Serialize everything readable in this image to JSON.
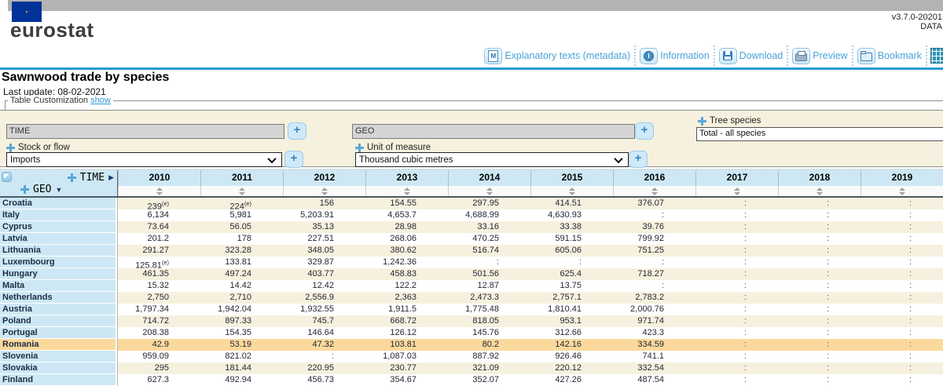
{
  "header": {
    "brand": "eurostat",
    "flag_icon": "eu-flag-icon",
    "version_line1": "v3.7.0-20201",
    "version_line2": "DATA",
    "toolbar": [
      {
        "name": "explanatory-texts-button",
        "icon": "metadata-icon",
        "label": "Explanatory texts (metadata)"
      },
      {
        "name": "information-button",
        "icon": "information-icon",
        "label": "Information"
      },
      {
        "name": "download-button",
        "icon": "download-icon",
        "label": "Download"
      },
      {
        "name": "preview-button",
        "icon": "preview-icon",
        "label": "Preview"
      },
      {
        "name": "bookmark-button",
        "icon": "bookmark-icon",
        "label": "Bookmark"
      }
    ],
    "trailing_icon": "table-grid-icon"
  },
  "page": {
    "title": "Sawnwood trade by species",
    "last_update": "Last update: 08-02-2021",
    "customization_label": "Table Customization",
    "customization_link": "show"
  },
  "filters": {
    "time": {
      "value": "TIME",
      "add_button": "+"
    },
    "geo": {
      "value": "GEO",
      "add_button": "+"
    },
    "tree_species": {
      "label": "Tree species",
      "value": "Total - all species",
      "icon": "move-icon"
    },
    "stock_or_flow": {
      "label": "Stock or flow",
      "value": "Imports",
      "add_button": "+",
      "icon": "move-icon"
    },
    "unit_of_measure": {
      "label": "Unit of measure",
      "value": "Thousand cubic metres",
      "add_button": "+",
      "icon": "move-icon"
    }
  },
  "table": {
    "time_axis_label": "TIME",
    "geo_axis_label": "GEO",
    "years": [
      "2010",
      "2011",
      "2012",
      "2013",
      "2014",
      "2015",
      "2016",
      "2017",
      "2018",
      "2019"
    ],
    "rows": [
      {
        "country": "Croatia",
        "highlight": false,
        "values": [
          "239 (e)",
          "224 (e)",
          "156",
          "154.55",
          "297.95",
          "414.51",
          "376.07",
          ":",
          ":",
          ":"
        ]
      },
      {
        "country": "Italy",
        "highlight": false,
        "values": [
          "6,134",
          "5,981",
          "5,203.91",
          "4,653.7",
          "4,688.99",
          "4,630.93",
          ":",
          ":",
          ":",
          ":"
        ]
      },
      {
        "country": "Cyprus",
        "highlight": false,
        "values": [
          "73.64",
          "56.05",
          "35.13",
          "28.98",
          "33.16",
          "33.38",
          "39.76",
          ":",
          ":",
          ":"
        ]
      },
      {
        "country": "Latvia",
        "highlight": false,
        "values": [
          "201.2",
          "178",
          "227.51",
          "268.06",
          "470.25",
          "591.15",
          "799.92",
          ":",
          ":",
          ":"
        ]
      },
      {
        "country": "Lithuania",
        "highlight": false,
        "values": [
          "291.27",
          "323.28",
          "348.05",
          "380.62",
          "516.74",
          "605.06",
          "751.25",
          ":",
          ":",
          ":"
        ]
      },
      {
        "country": "Luxembourg",
        "highlight": false,
        "values": [
          "125.81 (e)",
          "133.81",
          "329.87",
          "1,242.36",
          ":",
          ":",
          ":",
          ":",
          ":",
          ":"
        ]
      },
      {
        "country": "Hungary",
        "highlight": false,
        "values": [
          "461.35",
          "497.24",
          "403.77",
          "458.83",
          "501.56",
          "625.4",
          "718.27",
          ":",
          ":",
          ":"
        ]
      },
      {
        "country": "Malta",
        "highlight": false,
        "values": [
          "15.32",
          "14.42",
          "12.42",
          "122.2",
          "12.87",
          "13.75",
          ":",
          ":",
          ":",
          ":"
        ]
      },
      {
        "country": "Netherlands",
        "highlight": false,
        "values": [
          "2,750",
          "2,710",
          "2,556.9",
          "2,363",
          "2,473.3",
          "2,757.1",
          "2,783.2",
          ":",
          ":",
          ":"
        ]
      },
      {
        "country": "Austria",
        "highlight": false,
        "values": [
          "1,797.34",
          "1,942.04",
          "1,932.55",
          "1,911.5",
          "1,775.48",
          "1,810.41",
          "2,000.76",
          ":",
          ":",
          ":"
        ]
      },
      {
        "country": "Poland",
        "highlight": false,
        "values": [
          "714.72",
          "897.33",
          "745.7",
          "668.72",
          "818.05",
          "953.1",
          "971.74",
          ":",
          ":",
          ":"
        ]
      },
      {
        "country": "Portugal",
        "highlight": false,
        "values": [
          "208.38",
          "154.35",
          "146.64",
          "126.12",
          "145.76",
          "312.66",
          "423.3",
          ":",
          ":",
          ":"
        ]
      },
      {
        "country": "Romania",
        "highlight": true,
        "values": [
          "42.9",
          "53.19",
          "47.32",
          "103.81",
          "80.2",
          "142.16",
          "334.59",
          ":",
          ":",
          ":"
        ]
      },
      {
        "country": "Slovenia",
        "highlight": false,
        "values": [
          "959.09",
          "821.02",
          ":",
          "1,087.03",
          "887.92",
          "926.46",
          "741.1",
          ":",
          ":",
          ":"
        ]
      },
      {
        "country": "Slovakia",
        "highlight": false,
        "values": [
          "295",
          "181.44",
          "220.95",
          "230.77",
          "321.09",
          "220.12",
          "332.54",
          ":",
          ":",
          ":"
        ]
      },
      {
        "country": "Finland",
        "highlight": false,
        "values": [
          "627.3",
          "492.94",
          "456.73",
          "354.67",
          "352.07",
          "427.26",
          "487.54",
          ":",
          ":",
          ":"
        ]
      }
    ]
  },
  "colors": {
    "toolbar_link": "#4ba3d8",
    "blue_rule": "#1d9ad3",
    "panel_background": "#f6f1de",
    "header_blue": "#cde8f4",
    "highlight_row": "#fbd99c",
    "missing_value": "#7a3a5e",
    "flag_blue": "#003399",
    "flag_stars": "#ffcc00"
  }
}
